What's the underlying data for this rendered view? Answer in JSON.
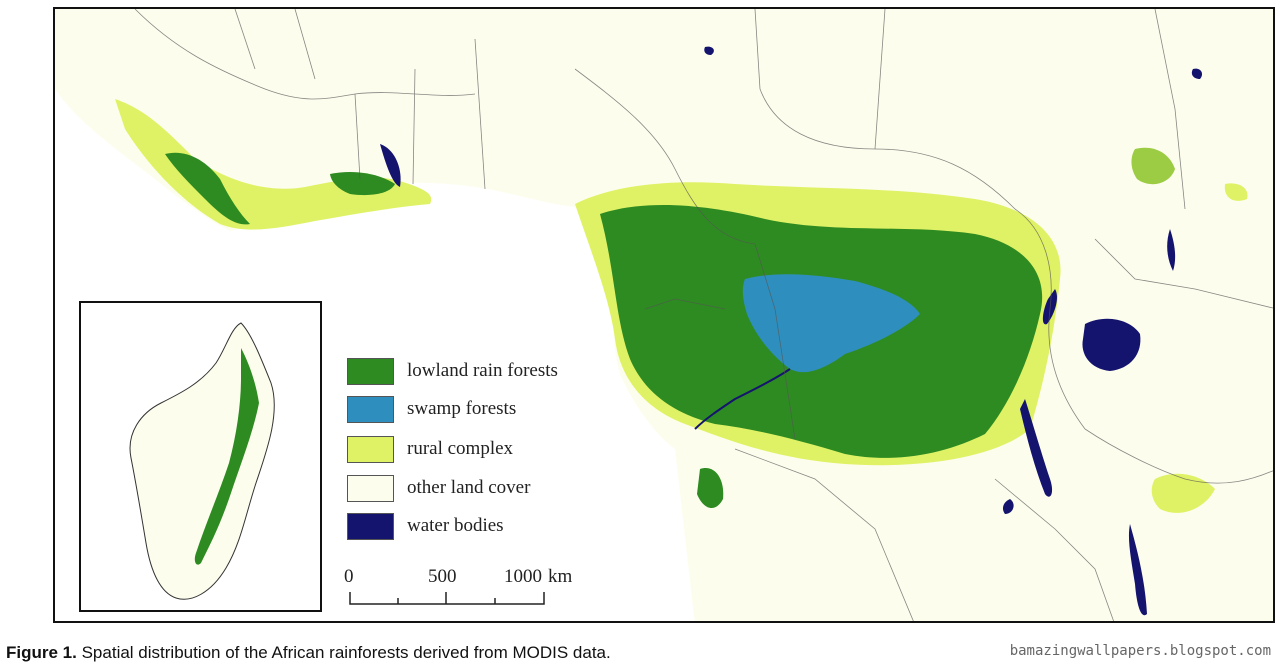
{
  "legend": {
    "items": [
      {
        "label": "lowland rain forests",
        "color": "#2e8b22"
      },
      {
        "label": "swamp forests",
        "color": "#2e8fbf"
      },
      {
        "label": "rural complex",
        "color": "#dff266"
      },
      {
        "label": "other land cover",
        "color": "#fdfdee"
      },
      {
        "label": "water bodies",
        "color": "#14146e"
      }
    ]
  },
  "scale": {
    "ticks": [
      "0",
      "500",
      "1000"
    ],
    "unit": "km"
  },
  "caption": {
    "figure_label": "Figure 1.",
    "text": "Spatial distribution of the African rainforests derived from MODIS data."
  },
  "watermark": "bamazingwallpapers.blogspot.com"
}
